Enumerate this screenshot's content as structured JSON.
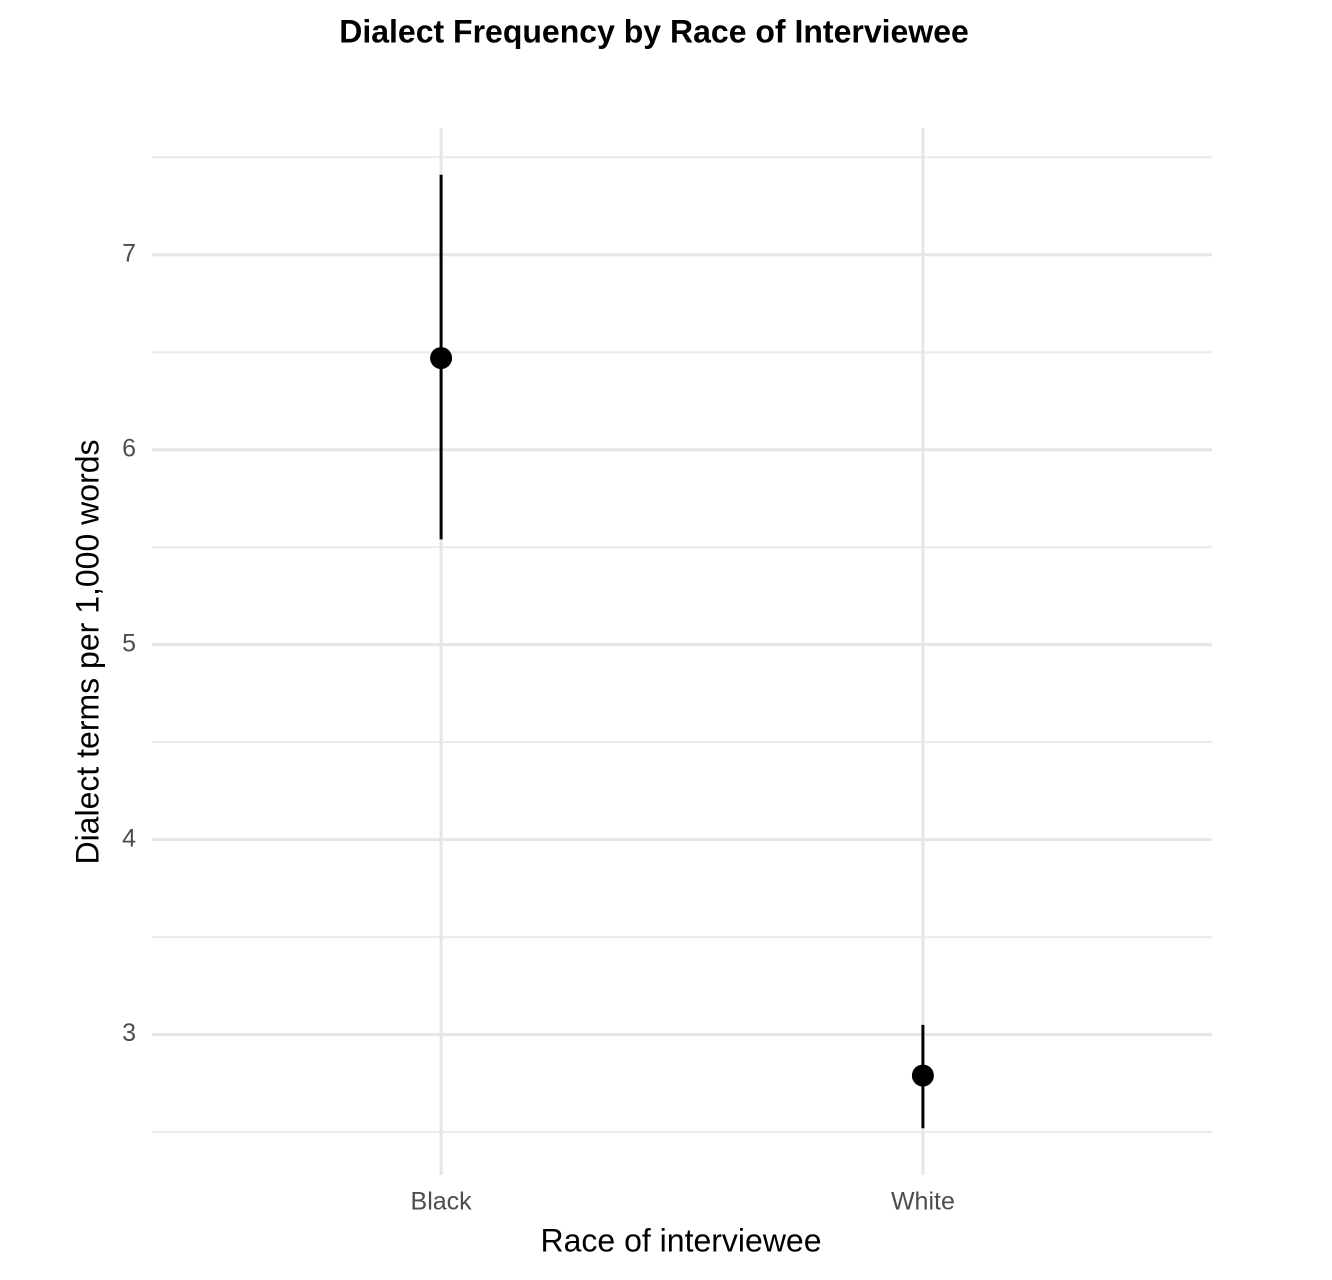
{
  "chart_data": {
    "type": "pointrange",
    "title": "Dialect Frequency by Race of Interviewee",
    "x_label": "Race of interviewee",
    "y_label": "Dialect terms per 1,000 words",
    "categories": [
      "Black",
      "White"
    ],
    "values": [
      6.47,
      2.79
    ],
    "lower": [
      5.54,
      2.52
    ],
    "upper": [
      7.41,
      3.05
    ],
    "color": "#000000",
    "ylim": [
      2.28,
      7.65
    ],
    "yticks": [
      3,
      4,
      5,
      6,
      7
    ],
    "yminor": [
      2.5,
      3.5,
      4.5,
      5.5,
      6.5,
      7.5
    ],
    "grid": true
  }
}
